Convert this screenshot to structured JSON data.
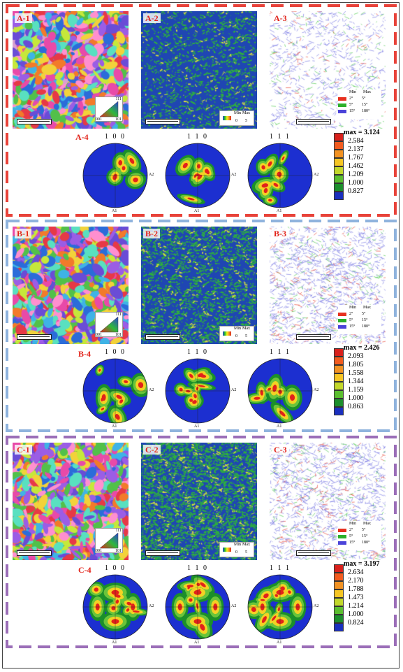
{
  "groups": [
    {
      "id": "A",
      "dash_colors": [
        "#e8433a"
      ],
      "labels": {
        "p1": "A-1",
        "p2": "A-2",
        "p3": "A-3",
        "p4": "A-4"
      },
      "kam_legend": {
        "min": "Min",
        "max": "Max",
        "lo": "0",
        "hi": "5"
      },
      "gb_legend": {
        "min": "Min",
        "max": "Max",
        "rows": [
          {
            "lo": "2°",
            "hi": "5°",
            "color": "#e7301f"
          },
          {
            "lo": "5°",
            "hi": "15°",
            "color": "#2cb02b"
          },
          {
            "lo": "15°",
            "hi": "180°",
            "color": "#4b43d9"
          }
        ]
      },
      "pole_titles": [
        "1 0 0",
        "1 1 0",
        "1 1 1"
      ],
      "axis_labels": {
        "a1": "A1",
        "a2": "A2"
      },
      "colorbar": {
        "max": "max = 3.124",
        "levels": [
          "2.584",
          "2.137",
          "1.767",
          "1.462",
          "1.209",
          "1.000",
          "0.827"
        ]
      }
    },
    {
      "id": "B",
      "dash_colors": [
        "#8fb3dd"
      ],
      "labels": {
        "p1": "B-1",
        "p2": "B-2",
        "p3": "B-3",
        "p4": "B-4"
      },
      "kam_legend": {
        "min": "Min",
        "max": "Max",
        "lo": "0",
        "hi": "5"
      },
      "gb_legend": {
        "min": "Min",
        "max": "Max",
        "rows": [
          {
            "lo": "2°",
            "hi": "5°",
            "color": "#e7301f"
          },
          {
            "lo": "5°",
            "hi": "15°",
            "color": "#2cb02b"
          },
          {
            "lo": "15°",
            "hi": "180°",
            "color": "#4b43d9"
          }
        ]
      },
      "pole_titles": [
        "1 0 0",
        "1 1 0",
        "1 1 1"
      ],
      "axis_labels": {
        "a1": "A1",
        "a2": "A2"
      },
      "colorbar": {
        "max": "max = 2.426",
        "levels": [
          "2.093",
          "1.805",
          "1.558",
          "1.344",
          "1.159",
          "1.000",
          "0.863"
        ]
      }
    },
    {
      "id": "C",
      "dash_colors": [
        "#9b6eb8"
      ],
      "labels": {
        "p1": "C-1",
        "p2": "C-2",
        "p3": "C-3",
        "p4": "C-4"
      },
      "kam_legend": {
        "min": "Min",
        "max": "Max",
        "lo": "0",
        "hi": "5"
      },
      "gb_legend": {
        "min": "Min",
        "max": "Max",
        "rows": [
          {
            "lo": "2°",
            "hi": "5°",
            "color": "#e7301f"
          },
          {
            "lo": "5°",
            "hi": "15°",
            "color": "#2cb02b"
          },
          {
            "lo": "15°",
            "hi": "180°",
            "color": "#4b43d9"
          }
        ]
      },
      "pole_titles": [
        "1 0 0",
        "1 1 0",
        "1 1 1"
      ],
      "axis_labels": {
        "a1": "A1",
        "a2": "A2"
      },
      "colorbar": {
        "max": "max = 3.197",
        "levels": [
          "2.634",
          "2.170",
          "1.788",
          "1.473",
          "1.214",
          "1.000",
          "0.824"
        ]
      }
    }
  ],
  "level_colors": [
    "#d9211c",
    "#f25b1e",
    "#f29222",
    "#f6c624",
    "#c3d82a",
    "#5bbf2f",
    "#1c8f2c",
    "#1a2fbf"
  ],
  "ipf_legend": {
    "a": "111",
    "b": "001",
    "c": "101"
  }
}
